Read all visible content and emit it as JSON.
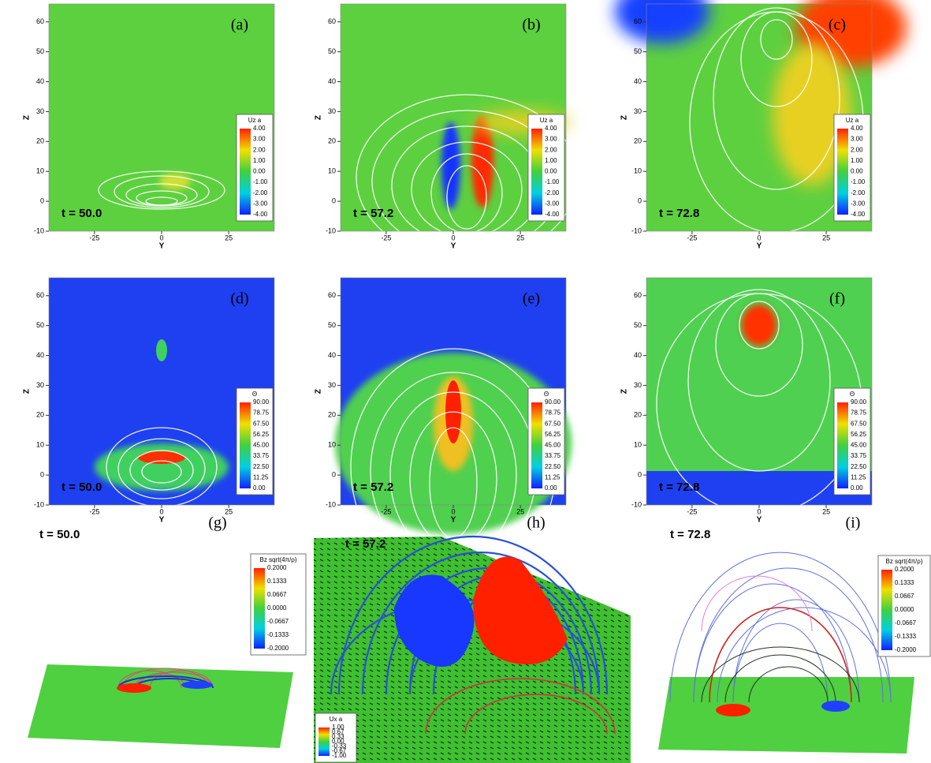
{
  "axes": {
    "ylim": [
      -42,
      42
    ],
    "zlim": [
      -10,
      66
    ],
    "xticks": [
      -25,
      0,
      25
    ],
    "zticks": [
      -10,
      0,
      10,
      20,
      30,
      40,
      50,
      60
    ],
    "xlabel": "Y",
    "zlabel": "Z"
  },
  "colorbars": {
    "uz": {
      "title": "Uz a",
      "ticks": [
        "4.00",
        "3.00",
        "2.00",
        "1.00",
        "0.00",
        "-1.00",
        "-2.00",
        "-3.00",
        "-4.00"
      ]
    },
    "theta": {
      "title": "Θ",
      "ticks": [
        "90.00",
        "78.75",
        "67.50",
        "56.25",
        "45.00",
        "33.75",
        "22.50",
        "11.25",
        "0.00"
      ]
    },
    "bz": {
      "title": "Bz sqrt(4π/ρ)",
      "ticks": [
        "0.2000",
        "0.1333",
        "0.0667",
        "0.0000",
        "-0.0667",
        "-0.1333",
        "-0.2000"
      ]
    },
    "ux": {
      "title": "Ux a",
      "ticks": [
        "1.00",
        "0.67",
        "0.33",
        "0.00",
        "-0.33",
        "-0.67",
        "-1.00"
      ]
    }
  },
  "panels": [
    {
      "label": "(a)",
      "time": "t = 50.0"
    },
    {
      "label": "(b)",
      "time": "t = 57.2"
    },
    {
      "label": "(c)",
      "time": "t = 72.8"
    },
    {
      "label": "(d)",
      "time": "t = 50.0"
    },
    {
      "label": "(e)",
      "time": "t = 57.2"
    },
    {
      "label": "(f)",
      "time": "t = 72.8"
    },
    {
      "label": "(g)",
      "time": "t = 50.0"
    },
    {
      "label": "(h)",
      "time": "t = 57.2"
    },
    {
      "label": "(i)",
      "time": "t = 72.8"
    }
  ]
}
